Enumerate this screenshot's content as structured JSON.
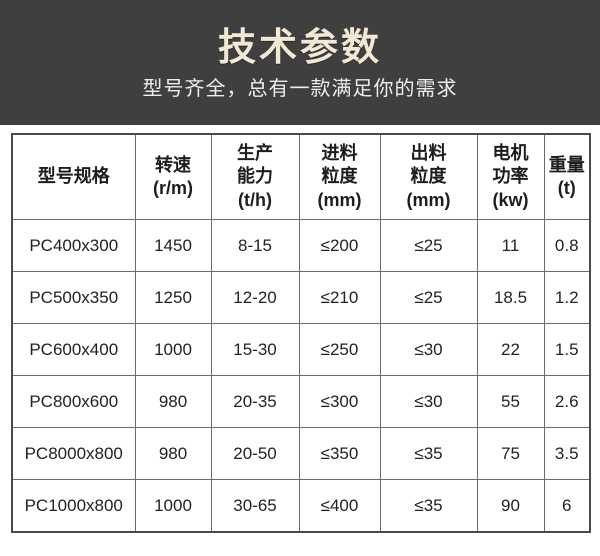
{
  "banner": {
    "title": "技术参数",
    "subtitle": "型号齐全，总有一款满足你的需求",
    "background_color": "#3f3f3f",
    "title_color": "#f2e8d4",
    "subtitle_color": "#ededed"
  },
  "table": {
    "columns": [
      {
        "id": "model",
        "lines": [
          "型号规格"
        ]
      },
      {
        "id": "speed",
        "lines": [
          "转速",
          "(r/m)"
        ]
      },
      {
        "id": "capacity",
        "lines": [
          "生产",
          "能力",
          "(t/h)"
        ]
      },
      {
        "id": "feed-size",
        "lines": [
          "进料",
          "粒度",
          "(mm)"
        ]
      },
      {
        "id": "output-size",
        "lines": [
          "出料",
          "粒度",
          "(mm)"
        ]
      },
      {
        "id": "motor-power",
        "lines": [
          "电机",
          "功率",
          "(kw)"
        ]
      },
      {
        "id": "weight",
        "lines": [
          "重量",
          "(t)"
        ]
      }
    ],
    "rows": [
      [
        "PC400x300",
        "1450",
        "8-15",
        "≤200",
        "≤25",
        "11",
        "0.8"
      ],
      [
        "PC500x350",
        "1250",
        "12-20",
        "≤210",
        "≤25",
        "18.5",
        "1.2"
      ],
      [
        "PC600x400",
        "1000",
        "15-30",
        "≤250",
        "≤30",
        "22",
        "1.5"
      ],
      [
        "PC800x600",
        "980",
        "20-35",
        "≤300",
        "≤30",
        "55",
        "2.6"
      ],
      [
        "PC8000x800",
        "980",
        "20-50",
        "≤350",
        "≤35",
        "75",
        "3.5"
      ],
      [
        "PC1000x800",
        "1000",
        "30-65",
        "≤400",
        "≤35",
        "90",
        "6"
      ]
    ]
  }
}
